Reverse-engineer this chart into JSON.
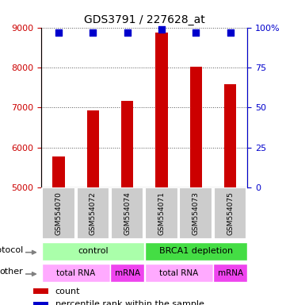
{
  "title": "GDS3791 / 227628_at",
  "samples": [
    "GSM554070",
    "GSM554072",
    "GSM554074",
    "GSM554071",
    "GSM554073",
    "GSM554075"
  ],
  "counts": [
    5780,
    6920,
    7160,
    8870,
    8020,
    7580
  ],
  "percentile_ranks": [
    97,
    97,
    97,
    99,
    97,
    97
  ],
  "ylim_left": [
    5000,
    9000
  ],
  "ylim_right": [
    0,
    100
  ],
  "yticks_left": [
    5000,
    6000,
    7000,
    8000,
    9000
  ],
  "yticks_right": [
    0,
    25,
    50,
    75,
    100
  ],
  "bar_color": "#cc0000",
  "dot_color": "#0000cc",
  "protocol_labels": [
    "control",
    "BRCA1 depletion"
  ],
  "protocol_colors": [
    "#aaffaa",
    "#44dd44"
  ],
  "other_labels": [
    "total RNA",
    "mRNA",
    "total RNA",
    "mRNA"
  ],
  "other_colors_light": "#ffaaff",
  "other_colors_dark": "#ee44ee",
  "grid_color": "#555555",
  "label_fontsize": 8,
  "tick_fontsize": 8,
  "title_fontsize": 10,
  "bar_width": 0.35,
  "dot_size": 30,
  "sample_box_color": "#cccccc",
  "left_tick_color": "#cc0000",
  "right_tick_color": "#0000cc",
  "spine_color": "#000000"
}
